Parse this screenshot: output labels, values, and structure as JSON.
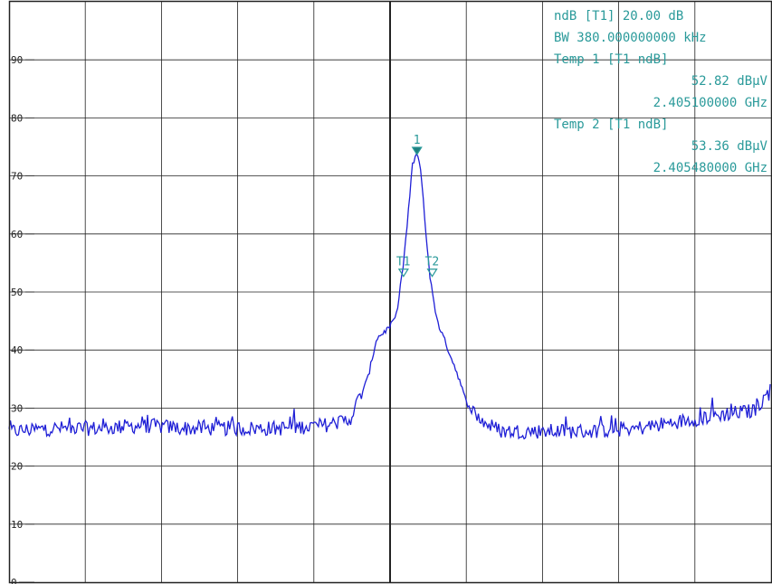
{
  "chart_data": {
    "type": "line",
    "title": "",
    "xlabel": "",
    "ylabel": "",
    "ylim": [
      0,
      100
    ],
    "grid": true,
    "yticks": [
      {
        "value": 90,
        "label": "90"
      },
      {
        "value": 80,
        "label": "80"
      },
      {
        "value": 70,
        "label": "70"
      },
      {
        "value": 60,
        "label": "60"
      },
      {
        "value": 50,
        "label": "50"
      },
      {
        "value": 40,
        "label": "40"
      },
      {
        "value": 30,
        "label": "30"
      },
      {
        "value": 20,
        "label": "20"
      },
      {
        "value": 10,
        "label": "10"
      },
      {
        "value": 0,
        "label": "0"
      }
    ],
    "series": [
      {
        "color": "#1f1fd6",
        "x": [
          0,
          50,
          100,
          150,
          200,
          250,
          300,
          350,
          380,
          400,
          410,
          425,
          432,
          440,
          445,
          450,
          455,
          460,
          465,
          470,
          475,
          480,
          485,
          490,
          500,
          510,
          520,
          530,
          550,
          600,
          650,
          700,
          740,
          760,
          800,
          830,
          850
        ],
        "y": [
          26,
          26.5,
          26.5,
          27,
          26.5,
          26.5,
          26.5,
          27,
          28,
          35,
          42,
          44,
          46,
          55,
          63,
          72,
          74,
          70,
          60,
          52,
          47,
          44,
          42,
          40,
          36,
          31,
          29,
          27.5,
          26,
          26,
          26,
          26.5,
          27.5,
          28,
          29,
          29.5,
          33
        ]
      }
    ],
    "markers": [
      {
        "label": "1",
        "x": 455,
        "y": 74,
        "filled": true
      },
      {
        "label": "T1",
        "x": 440,
        "y": 53,
        "filled": false
      },
      {
        "label": "T2",
        "x": 472,
        "y": 53,
        "filled": false
      }
    ],
    "readouts": [
      "ndB [T1]    20.00 dB",
      "BW 380.000000000 kHz",
      "Temp 1 [T1 ndB]",
      "52.82 dBµV",
      "2.405100000 GHz",
      "Temp 2 [T1 ndB]",
      "53.36 dBµV",
      "2.405480000 GHz"
    ],
    "colors": {
      "trace": "#1f1fd6",
      "annotation": "#2a9a9a",
      "grid": "#222222"
    }
  }
}
